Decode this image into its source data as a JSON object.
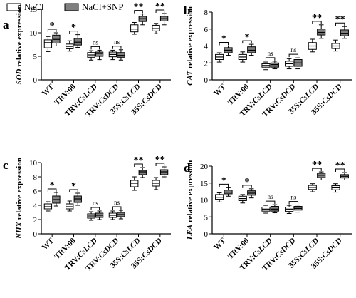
{
  "legend": {
    "items": [
      {
        "label": "NaCl",
        "color": "#ffffff"
      },
      {
        "label": "NaCl+SNP",
        "color": "#808080"
      }
    ],
    "placement": "top"
  },
  "chart_data": [
    {
      "panel": "a",
      "type": "box",
      "ylabel_gene": "SOD",
      "ylabel_suffix": " relative expression",
      "ylim": [
        0,
        15
      ],
      "yticks": [
        0,
        5,
        10,
        15
      ],
      "categories": [
        {
          "prefix": "WT",
          "gene": ""
        },
        {
          "prefix": "TRV:00",
          "gene": ""
        },
        {
          "prefix": "TRV:",
          "gene": "CsLCD"
        },
        {
          "prefix": "TRV:",
          "gene": "CsDCD"
        },
        {
          "prefix": "35S:",
          "gene": "CsLCD"
        },
        {
          "prefix": "35S:",
          "gene": "CsDCD"
        }
      ],
      "series": [
        {
          "name": "NaCl",
          "boxes": [
            [
              6.0,
              6.8,
              7.9,
              8.5,
              9.2
            ],
            [
              6.1,
              6.6,
              7.1,
              7.6,
              8.3
            ],
            [
              4.2,
              4.8,
              5.3,
              5.8,
              6.2
            ],
            [
              4.3,
              4.9,
              5.4,
              5.9,
              6.3
            ],
            [
              9.7,
              10.2,
              10.8,
              11.7,
              12.2
            ],
            [
              9.8,
              10.4,
              10.9,
              11.6,
              12.0
            ]
          ]
        },
        {
          "name": "NaCl+SNP",
          "boxes": [
            [
              7.2,
              7.8,
              8.6,
              9.5,
              10.0
            ],
            [
              6.9,
              7.4,
              8.0,
              8.8,
              9.6
            ],
            [
              4.3,
              5.0,
              5.6,
              5.9,
              6.3
            ],
            [
              4.2,
              4.8,
              5.2,
              5.8,
              6.4
            ],
            [
              11.7,
              12.4,
              13.0,
              13.5,
              14.0
            ],
            [
              11.7,
              12.5,
              13.0,
              13.5,
              14.1
            ]
          ]
        }
      ],
      "significance": [
        "*",
        "*",
        "ns",
        "ns",
        "**",
        "**"
      ]
    },
    {
      "panel": "b",
      "type": "box",
      "ylabel_gene": "CAT",
      "ylabel_suffix": " relative expression",
      "ylim": [
        0,
        8
      ],
      "yticks": [
        0,
        2,
        4,
        6,
        8
      ],
      "categories": [
        {
          "prefix": "WT",
          "gene": ""
        },
        {
          "prefix": "TRV:00",
          "gene": ""
        },
        {
          "prefix": "TRV:",
          "gene": "CsLCD"
        },
        {
          "prefix": "TRV:",
          "gene": "CsDCD"
        },
        {
          "prefix": "35S:",
          "gene": "CsLCD"
        },
        {
          "prefix": "35S:",
          "gene": "CsDCD"
        }
      ],
      "series": [
        {
          "name": "NaCl",
          "boxes": [
            [
              2.1,
              2.4,
              2.7,
              3.0,
              3.2
            ],
            [
              2.1,
              2.4,
              2.7,
              3.0,
              3.3
            ],
            [
              1.2,
              1.5,
              1.7,
              1.9,
              2.1
            ],
            [
              1.3,
              1.6,
              1.9,
              2.2,
              2.5
            ],
            [
              3.3,
              3.6,
              4.0,
              4.4,
              4.8
            ],
            [
              3.4,
              3.7,
              4.0,
              4.3,
              4.7
            ]
          ]
        },
        {
          "name": "NaCl+SNP",
          "boxes": [
            [
              2.9,
              3.2,
              3.5,
              3.8,
              4.0
            ],
            [
              2.9,
              3.2,
              3.5,
              3.9,
              4.2
            ],
            [
              1.3,
              1.5,
              1.8,
              2.0,
              2.2
            ],
            [
              1.3,
              1.6,
              2.0,
              2.4,
              2.6
            ],
            [
              4.9,
              5.3,
              5.6,
              6.0,
              6.5
            ],
            [
              4.9,
              5.2,
              5.5,
              5.9,
              6.3
            ]
          ]
        }
      ],
      "significance": [
        "*",
        "*",
        "ns",
        "ns",
        "**",
        "**"
      ]
    },
    {
      "panel": "c",
      "type": "box",
      "ylabel_gene": "NHX",
      "ylabel_suffix": " relative expression",
      "ylim": [
        0,
        10
      ],
      "yticks": [
        0,
        2,
        4,
        6,
        8,
        10
      ],
      "categories": [
        {
          "prefix": "WT",
          "gene": ""
        },
        {
          "prefix": "TRV:00",
          "gene": ""
        },
        {
          "prefix": "TRV:",
          "gene": "CsLCD"
        },
        {
          "prefix": "TRV:",
          "gene": "CsDCD"
        },
        {
          "prefix": "35S:",
          "gene": "CsLCD"
        },
        {
          "prefix": "35S:",
          "gene": "CsDCD"
        }
      ],
      "series": [
        {
          "name": "NaCl",
          "boxes": [
            [
              3.2,
              3.5,
              3.8,
              4.2,
              4.5
            ],
            [
              3.2,
              3.5,
              3.8,
              4.2,
              4.6
            ],
            [
              1.9,
              2.2,
              2.5,
              2.8,
              3.1
            ],
            [
              2.0,
              2.3,
              2.6,
              2.9,
              3.2
            ],
            [
              6.1,
              6.6,
              7.1,
              7.5,
              8.0
            ],
            [
              6.2,
              6.7,
              7.1,
              7.5,
              7.9
            ]
          ]
        },
        {
          "name": "NaCl+SNP",
          "boxes": [
            [
              3.9,
              4.3,
              4.8,
              5.3,
              5.8
            ],
            [
              4.0,
              4.4,
              4.9,
              5.3,
              5.7
            ],
            [
              2.0,
              2.3,
              2.6,
              2.9,
              3.2
            ],
            [
              2.1,
              2.4,
              2.7,
              3.0,
              3.3
            ],
            [
              7.9,
              8.3,
              8.7,
              8.9,
              9.3
            ],
            [
              8.0,
              8.3,
              8.7,
              9.0,
              9.4
            ]
          ]
        }
      ],
      "significance": [
        "*",
        "*",
        "ns",
        "ns",
        "**",
        "**"
      ]
    },
    {
      "panel": "d",
      "type": "box",
      "ylabel_gene": "LEA",
      "ylabel_suffix": " relative expression",
      "ylim": [
        0,
        20
      ],
      "yticks": [
        0,
        5,
        10,
        15,
        20
      ],
      "categories": [
        {
          "prefix": "WT",
          "gene": ""
        },
        {
          "prefix": "TRV:00",
          "gene": ""
        },
        {
          "prefix": "TRV:",
          "gene": "CsLCD"
        },
        {
          "prefix": "TRV:",
          "gene": "CsDCD"
        },
        {
          "prefix": "35S:",
          "gene": "CsLCD"
        },
        {
          "prefix": "35S:",
          "gene": "CsDCD"
        }
      ],
      "series": [
        {
          "name": "NaCl",
          "boxes": [
            [
              9.4,
              10.2,
              10.8,
              11.6,
              12.1
            ],
            [
              9.1,
              9.8,
              10.4,
              11.1,
              11.6
            ],
            [
              6.1,
              6.7,
              7.3,
              7.9,
              8.4
            ],
            [
              6.0,
              6.6,
              7.3,
              7.9,
              8.4
            ],
            [
              12.4,
              13.1,
              13.7,
              14.3,
              14.8
            ],
            [
              12.3,
              13.0,
              13.6,
              14.2,
              14.8
            ]
          ]
        },
        {
          "name": "NaCl+SNP",
          "boxes": [
            [
              11.1,
              11.8,
              12.3,
              12.9,
              13.6
            ],
            [
              10.6,
              11.4,
              12.0,
              12.7,
              13.3
            ],
            [
              6.2,
              6.7,
              7.3,
              8.1,
              8.6
            ],
            [
              6.4,
              7.0,
              7.5,
              8.1,
              8.5
            ],
            [
              15.9,
              16.6,
              17.3,
              17.9,
              18.3
            ],
            [
              15.9,
              16.5,
              17.0,
              17.5,
              18.1
            ]
          ]
        }
      ],
      "significance": [
        "*",
        "*",
        "ns",
        "ns",
        "**",
        "**"
      ]
    }
  ]
}
